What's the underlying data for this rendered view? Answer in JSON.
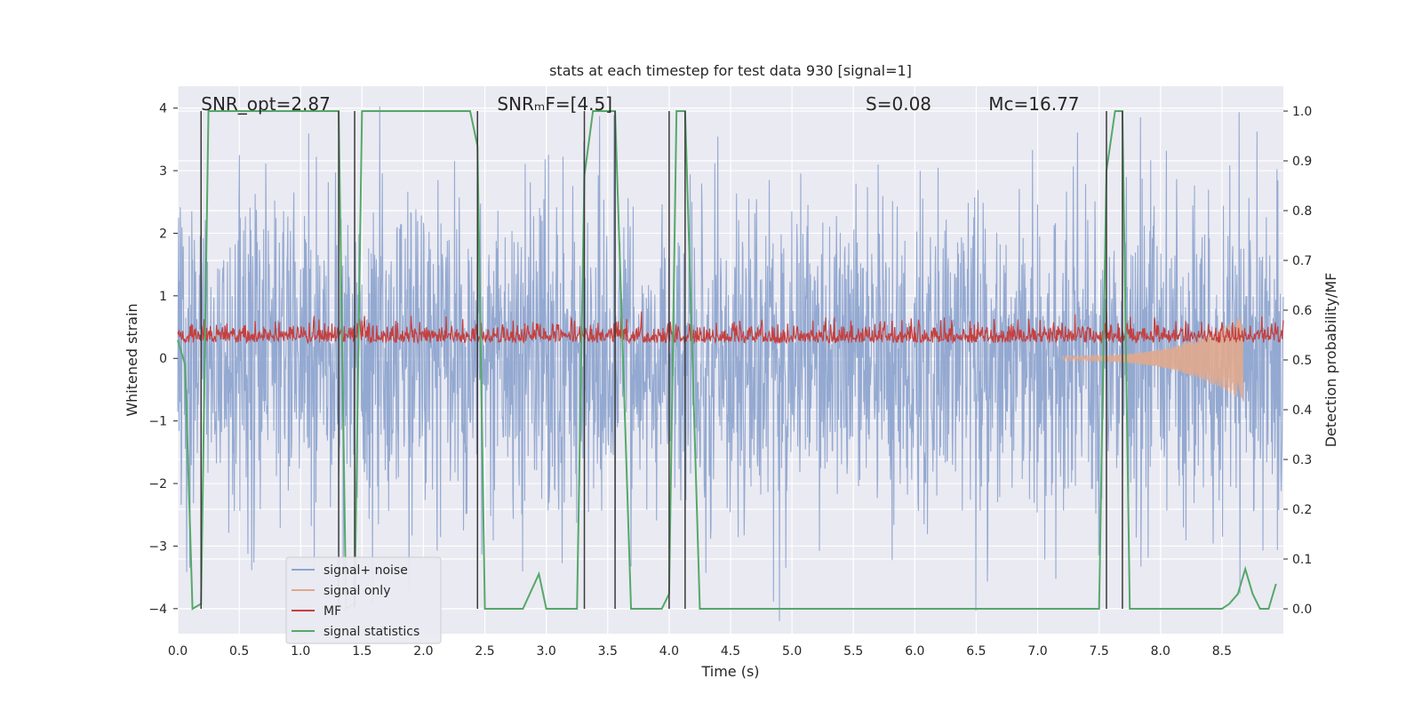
{
  "chart_data": {
    "type": "line",
    "title": "stats at each timestep for test data 930 [signal=1]",
    "xlabel": "Time (s)",
    "ylabel_left": "Whitened strain",
    "ylabel_right": "Detection probability/MF",
    "xlim": [
      0.0,
      9.0
    ],
    "ylim_left": [
      -4.4,
      4.35
    ],
    "ylim_right": [
      -0.05,
      1.05
    ],
    "x_ticks": [
      0.0,
      0.5,
      1.0,
      1.5,
      2.0,
      2.5,
      3.0,
      3.5,
      4.0,
      4.5,
      5.0,
      5.5,
      6.0,
      6.5,
      7.0,
      7.5,
      8.0,
      8.5
    ],
    "x_tick_labels": [
      "0.0",
      "0.5",
      "1.0",
      "1.5",
      "2.0",
      "2.5",
      "3.0",
      "3.5",
      "4.0",
      "4.5",
      "5.0",
      "5.5",
      "6.0",
      "6.5",
      "7.0",
      "7.5",
      "8.0",
      "8.5"
    ],
    "y_ticks_left": [
      -4,
      -3,
      -2,
      -1,
      0,
      1,
      2,
      3,
      4
    ],
    "y_tick_labels_left": [
      "−4",
      "−3",
      "−2",
      "−1",
      "0",
      "1",
      "2",
      "3",
      "4"
    ],
    "y_ticks_right": [
      0.0,
      0.1,
      0.2,
      0.3,
      0.4,
      0.5,
      0.6,
      0.7,
      0.8,
      0.9,
      1.0
    ],
    "y_tick_labels_right": [
      "0.0",
      "0.1",
      "0.2",
      "0.3",
      "0.4",
      "0.5",
      "0.6",
      "0.7",
      "0.8",
      "0.9",
      "1.0"
    ],
    "grid": true,
    "legend_position": "lower-left",
    "annotations": [
      {
        "id": "snr-opt",
        "text": "SNR_opt=2.87",
        "x": 0.19
      },
      {
        "id": "snr-mf",
        "text": "SNRₘF=[4.5]",
        "x": 2.6
      },
      {
        "id": "s-value",
        "text": "S=0.08",
        "x": 5.6
      },
      {
        "id": "mc-value",
        "text": "Mc=16.77",
        "x": 6.6
      }
    ],
    "series": [
      {
        "name": "signal+ noise",
        "color": "#8fa5cf",
        "style": "noise",
        "amplitude_typical": 1.5,
        "amplitude_peak": 4.0,
        "x_range": [
          0.0,
          9.0
        ]
      },
      {
        "name": "signal only",
        "color": "#e0a88d",
        "style": "chirp",
        "x_range": [
          7.2,
          8.67
        ],
        "peak_amplitude": 0.65
      },
      {
        "name": "MF",
        "color": "#c4403f",
        "style": "mf",
        "axis": "left",
        "baseline": 0.3,
        "x_range": [
          0.0,
          9.0
        ]
      },
      {
        "name": "signal statistics",
        "color": "#55a868",
        "axis": "right",
        "x": [
          0.0,
          0.06,
          0.12,
          0.19,
          0.25,
          1.31,
          1.37,
          1.44,
          1.5,
          2.38,
          2.44,
          2.5,
          2.81,
          2.94,
          3.0,
          3.25,
          3.31,
          3.38,
          3.56,
          3.69,
          3.94,
          4.0,
          4.06,
          4.13,
          4.25,
          7.5,
          7.56,
          7.63,
          7.69,
          7.75,
          8.5,
          8.56,
          8.63,
          8.69,
          8.75,
          8.81,
          8.88,
          8.94
        ],
        "y": [
          0.54,
          0.49,
          0.0,
          0.01,
          1.0,
          1.0,
          0.0,
          0.01,
          1.0,
          1.0,
          0.93,
          0.0,
          0.0,
          0.07,
          0.0,
          0.0,
          0.87,
          1.0,
          1.0,
          0.0,
          0.0,
          0.03,
          1.0,
          1.0,
          0.0,
          0.0,
          0.88,
          1.0,
          1.0,
          0.0,
          0.0,
          0.01,
          0.03,
          0.08,
          0.03,
          0.0,
          0.0,
          0.05
        ]
      }
    ],
    "vertical_markers": {
      "color": "#3a3a3a",
      "x": [
        0.19,
        1.31,
        1.44,
        2.44,
        3.31,
        3.56,
        4.0,
        4.13,
        7.56,
        7.69
      ],
      "y_right": [
        0.0,
        1.0
      ]
    }
  }
}
